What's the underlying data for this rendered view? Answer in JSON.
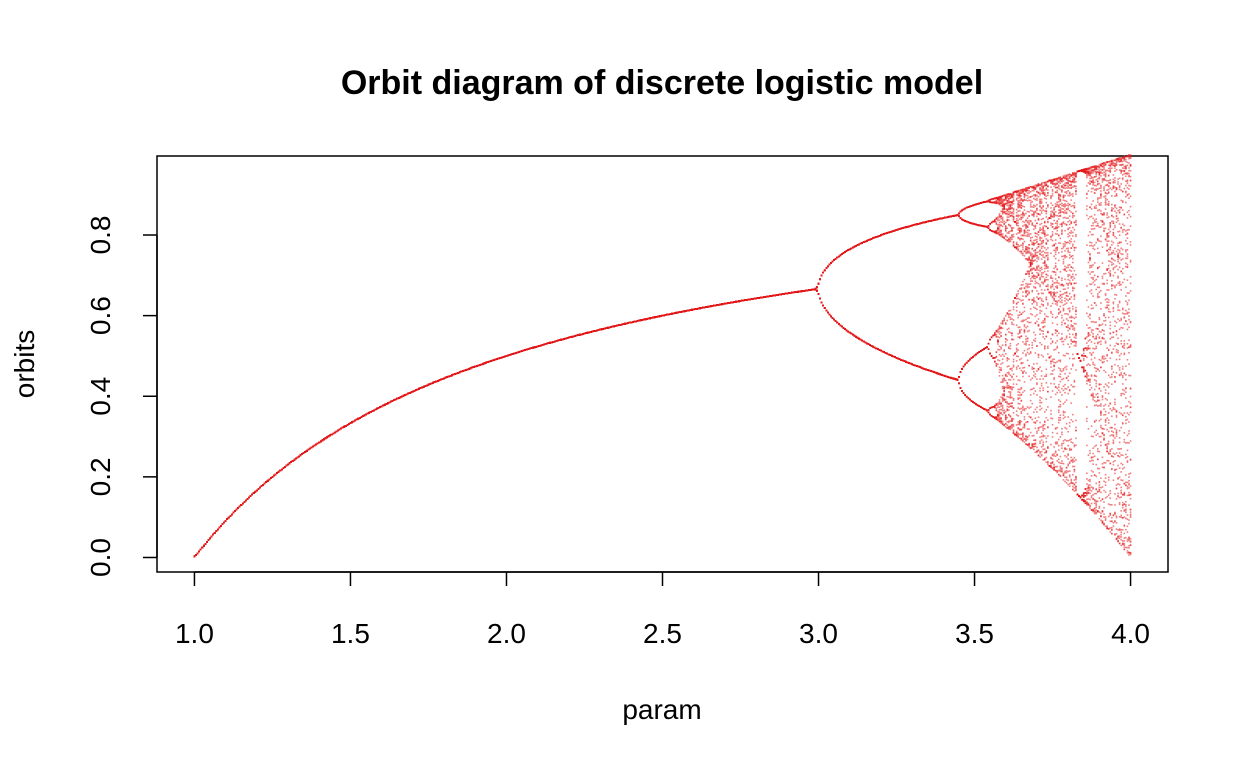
{
  "chart_data": {
    "type": "scatter",
    "title": "Orbit diagram of discrete logistic model",
    "xlabel": "param",
    "ylabel": "orbits",
    "xlim": [
      0.88,
      4.12
    ],
    "ylim": [
      -0.036,
      0.996
    ],
    "x_ticks": [
      1.0,
      1.5,
      2.0,
      2.5,
      3.0,
      3.5,
      4.0
    ],
    "x_tick_labels": [
      "1.0",
      "1.5",
      "2.0",
      "2.5",
      "3.0",
      "3.5",
      "4.0"
    ],
    "y_ticks": [
      0.0,
      0.2,
      0.4,
      0.6,
      0.8
    ],
    "y_tick_labels": [
      "0.0",
      "0.2",
      "0.4",
      "0.6",
      "0.8"
    ],
    "param_range": [
      1.0,
      4.0
    ],
    "point_color": "#e31a1c",
    "grid": false,
    "legend": "none"
  }
}
